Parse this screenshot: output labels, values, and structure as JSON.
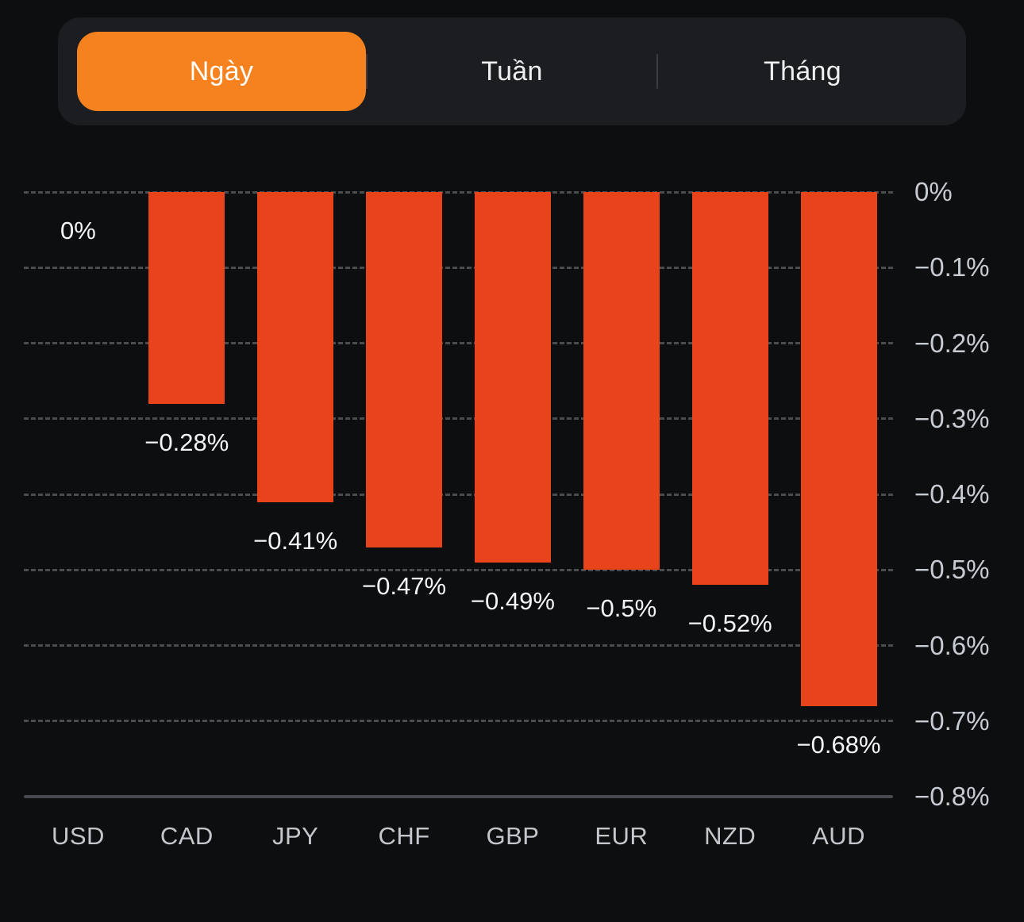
{
  "tabs": {
    "items": [
      {
        "label": "Ngày",
        "active": true
      },
      {
        "label": "Tuần",
        "active": false
      },
      {
        "label": "Tháng",
        "active": false
      }
    ]
  },
  "colors": {
    "accent_orange": "#F5821F",
    "bar_red_orange": "#E8431A",
    "background": "#0D0E10",
    "tabbar_background": "#1C1D20"
  },
  "chart_data": {
    "type": "bar",
    "categories": [
      "USD",
      "CAD",
      "JPY",
      "CHF",
      "GBP",
      "EUR",
      "NZD",
      "AUD"
    ],
    "values": [
      0,
      -0.28,
      -0.41,
      -0.47,
      -0.49,
      -0.5,
      -0.52,
      -0.68
    ],
    "bar_labels": [
      "0%",
      "−0.28%",
      "−0.41%",
      "−0.47%",
      "−0.49%",
      "−0.5%",
      "−0.52%",
      "−0.68%"
    ],
    "y_ticks": [
      "0%",
      "−0.1%",
      "−0.2%",
      "−0.3%",
      "−0.4%",
      "−0.5%",
      "−0.6%",
      "−0.7%",
      "−0.8%"
    ],
    "ylim": [
      -0.8,
      0
    ],
    "title": "",
    "xlabel": "",
    "ylabel": "",
    "grid": "dashed horizontal",
    "legend": "none",
    "y_axis_position": "right",
    "bar_color": "#E8431A"
  }
}
